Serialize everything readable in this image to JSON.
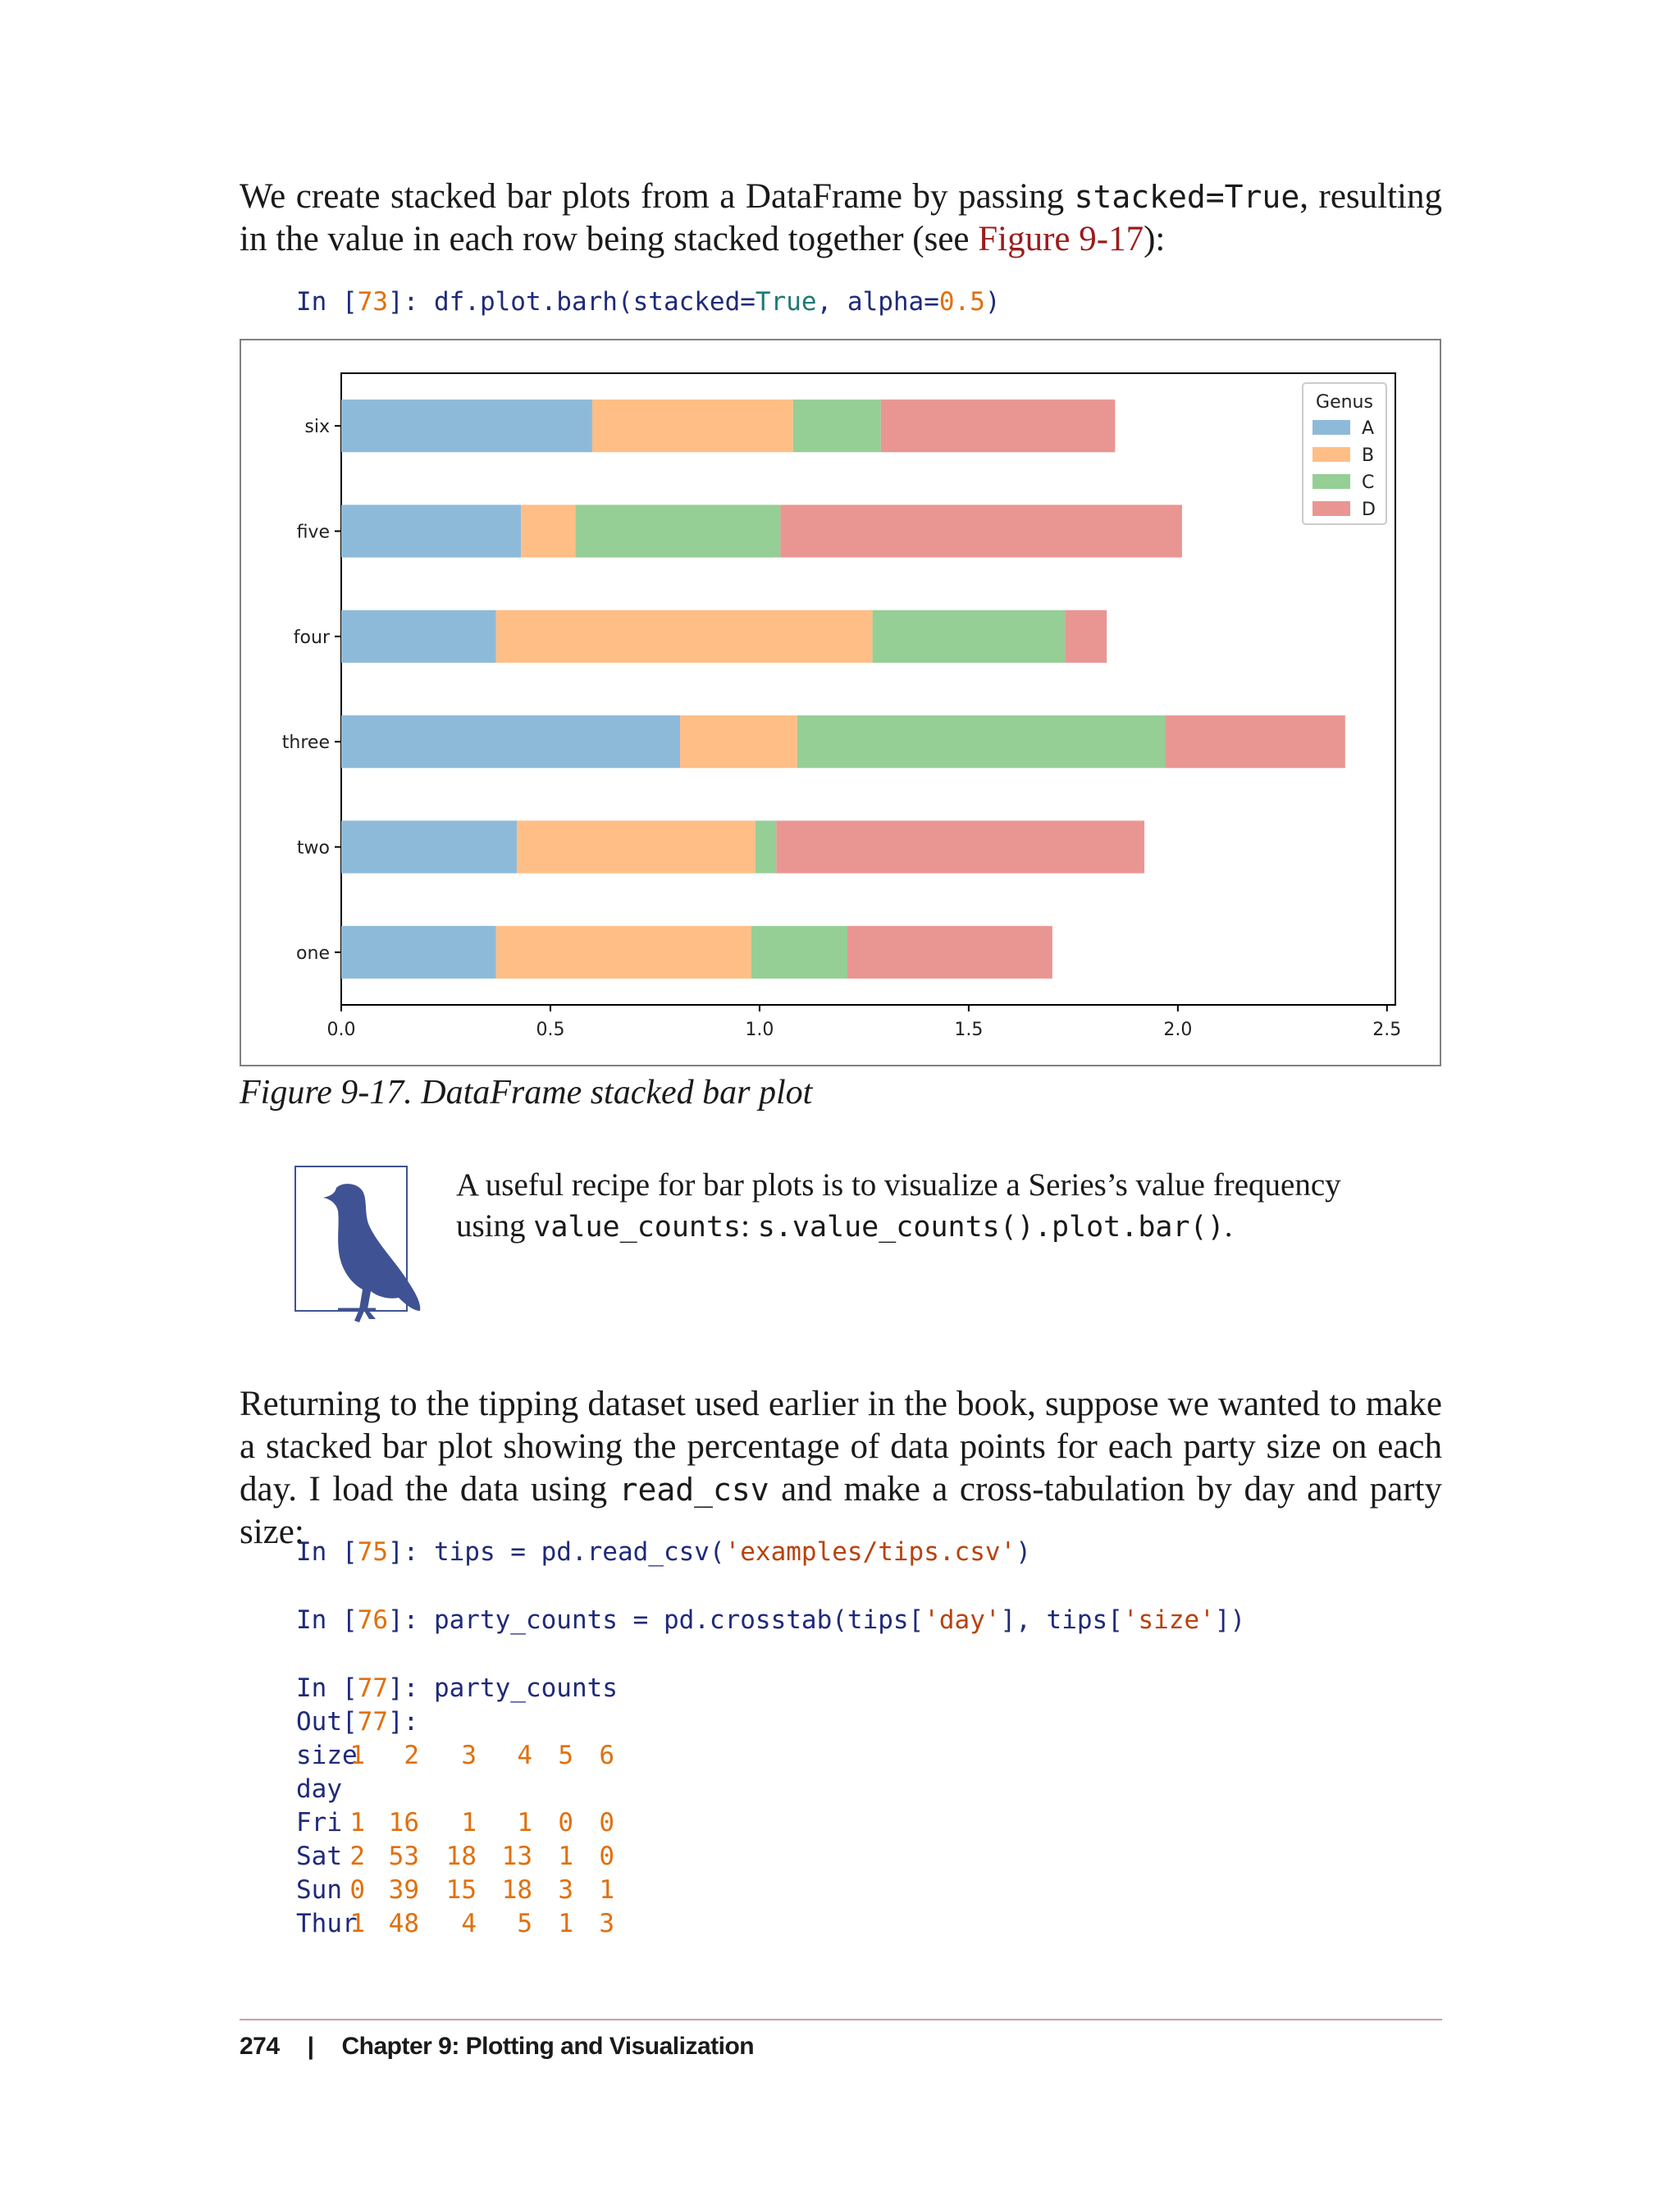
{
  "intro": {
    "part1": "We create stacked bar plots from a DataFrame by passing ",
    "code1": "stacked=True",
    "part2": ", resulting in the value in each row being stacked together (see ",
    "xref": "Figure 9-17",
    "part3": "):"
  },
  "code_in73": {
    "prompt_open": "In [",
    "num": "73",
    "prompt_close": "]: ",
    "call": "df.plot.barh(stacked=",
    "true_kw": "True",
    "mid": ", alpha=",
    "alpha_val": "0.5",
    "end": ")"
  },
  "chart_data": {
    "type": "bar",
    "orientation": "horizontal",
    "stacked": true,
    "categories": [
      "one",
      "two",
      "three",
      "four",
      "five",
      "six"
    ],
    "series": [
      {
        "name": "A",
        "color": "#8ebad9",
        "values": [
          0.37,
          0.42,
          0.81,
          0.37,
          0.43,
          0.6
        ]
      },
      {
        "name": "B",
        "color": "#ffbe86",
        "values": [
          0.61,
          0.57,
          0.28,
          0.9,
          0.13,
          0.48
        ]
      },
      {
        "name": "C",
        "color": "#95cf95",
        "values": [
          0.23,
          0.05,
          0.88,
          0.46,
          0.49,
          0.21
        ]
      },
      {
        "name": "D",
        "color": "#e99693",
        "values": [
          0.49,
          0.88,
          0.43,
          0.1,
          0.96,
          0.56
        ]
      }
    ],
    "legend_title": "Genus",
    "legend_position": "top-right",
    "xlim": [
      0,
      2.52
    ],
    "xticks": [
      "0.0",
      "0.5",
      "1.0",
      "1.5",
      "2.0",
      "2.5"
    ],
    "xlabel": "",
    "ylabel": "",
    "grid": false
  },
  "caption": "Figure 9-17. DataFrame stacked bar plot",
  "tip": {
    "line1": "A useful recipe for bar plots is to visualize a Series’s value frequency using ",
    "code1": "value_counts",
    "colon": ": ",
    "code2": "s.value_counts().plot.bar()",
    "end": "."
  },
  "para2": {
    "part1": "Returning to the tipping dataset used earlier in the book, suppose we wanted to make a stacked bar plot showing the percentage of data points for each party size on each day. I load the data using ",
    "code1": "read_csv",
    "part2": " and make a cross-tabulation by day and party size:"
  },
  "code_in75": {
    "prompt": "In [",
    "num": "75",
    "close": "]: ",
    "body": "tips = pd.read_csv(",
    "str": "'examples/tips.csv'",
    "end": ")"
  },
  "code_in76": {
    "prompt": "In [",
    "num": "76",
    "close": "]: ",
    "body1": "party_counts = pd.crosstab(tips[",
    "str1": "'day'",
    "body2": "], tips[",
    "str2": "'size'",
    "end": "])"
  },
  "code_in77": {
    "prompt": "In [",
    "num": "77",
    "close": "]: ",
    "body": "party_counts"
  },
  "code_out77": {
    "prompt": "Out[",
    "num": "77",
    "close": "]:"
  },
  "crosstab": {
    "header_label": "size",
    "columns": [
      "1",
      "2",
      "3",
      "4",
      "5",
      "6"
    ],
    "index_label": "day",
    "rows": [
      {
        "day": "Fri",
        "values": [
          "1",
          "16",
          "1",
          "1",
          "0",
          "0"
        ]
      },
      {
        "day": "Sat",
        "values": [
          "2",
          "53",
          "18",
          "13",
          "1",
          "0"
        ]
      },
      {
        "day": "Sun",
        "values": [
          "0",
          "39",
          "15",
          "18",
          "3",
          "1"
        ]
      },
      {
        "day": "Thur",
        "values": [
          "1",
          "48",
          "4",
          "5",
          "1",
          "3"
        ]
      }
    ]
  },
  "footer": {
    "page": "274",
    "separator": "|",
    "chapter": "Chapter 9: Plotting and Visualization"
  }
}
